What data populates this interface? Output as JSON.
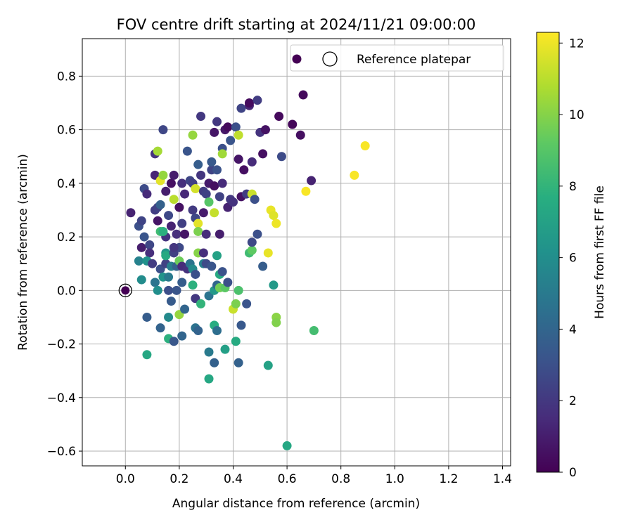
{
  "chart_data": {
    "type": "scatter",
    "title": "FOV centre drift starting at 2024/11/21 09:00:00",
    "xlabel": "Angular distance from reference (arcmin)",
    "ylabel": "Rotation from reference (arcmin)",
    "xlim": [
      -0.16,
      1.43
    ],
    "ylim": [
      -0.655,
      0.94
    ],
    "xticks": [
      "0.0",
      "0.2",
      "0.4",
      "0.6",
      "0.8",
      "1.0",
      "1.2",
      "1.4"
    ],
    "yticks": [
      "−0.6",
      "−0.4",
      "−0.2",
      "0.0",
      "0.2",
      "0.4",
      "0.6",
      "0.8"
    ],
    "grid": true,
    "legend": {
      "position": "top-right",
      "entries": [
        "Reference platepar"
      ]
    },
    "colorbar": {
      "label": "Hours from first FF file",
      "min": 0,
      "max": 12.3,
      "ticks": [
        "0",
        "2",
        "4",
        "6",
        "8",
        "10",
        "12"
      ],
      "colormap": "viridis"
    },
    "reference_point": {
      "x": 0.0,
      "y": 0.0,
      "color": "#440154"
    },
    "points": [
      [
        0.02,
        0.29,
        1.2
      ],
      [
        0.05,
        0.24,
        3.0
      ],
      [
        0.06,
        0.26,
        2.5
      ],
      [
        0.07,
        0.38,
        2.8
      ],
      [
        0.08,
        0.36,
        1.5
      ],
      [
        0.06,
        0.16,
        1.0
      ],
      [
        0.07,
        0.2,
        3.2
      ],
      [
        0.09,
        0.17,
        2.6
      ],
      [
        0.09,
        0.14,
        1.6
      ],
      [
        0.11,
        0.3,
        2.2
      ],
      [
        0.11,
        0.43,
        1.3
      ],
      [
        0.11,
        0.51,
        1.8
      ],
      [
        0.12,
        0.52,
        10.6
      ],
      [
        0.12,
        0.31,
        2.4
      ],
      [
        0.12,
        0.26,
        0.7
      ],
      [
        0.13,
        0.41,
        11.8
      ],
      [
        0.13,
        0.32,
        3.8
      ],
      [
        0.14,
        0.43,
        10.3
      ],
      [
        0.14,
        0.6,
        2.6
      ],
      [
        0.15,
        0.37,
        1.0
      ],
      [
        0.15,
        0.2,
        1.8
      ],
      [
        0.15,
        0.14,
        6.4
      ],
      [
        0.16,
        0.28,
        2.7
      ],
      [
        0.17,
        0.4,
        0.5
      ],
      [
        0.17,
        0.24,
        1.2
      ],
      [
        0.18,
        0.43,
        0.9
      ],
      [
        0.18,
        0.34,
        11.0
      ],
      [
        0.19,
        0.21,
        1.6
      ],
      [
        0.2,
        0.31,
        0.6
      ],
      [
        0.2,
        0.16,
        2.7
      ],
      [
        0.21,
        0.4,
        1.7
      ],
      [
        0.21,
        0.25,
        2.3
      ],
      [
        0.22,
        0.21,
        0.7
      ],
      [
        0.22,
        0.36,
        1.4
      ],
      [
        0.23,
        0.52,
        3.2
      ],
      [
        0.24,
        0.41,
        2.6
      ],
      [
        0.25,
        0.4,
        2.3
      ],
      [
        0.25,
        0.3,
        2.1
      ],
      [
        0.25,
        0.58,
        10.3
      ],
      [
        0.26,
        0.38,
        11.5
      ],
      [
        0.26,
        0.27,
        2.6
      ],
      [
        0.27,
        0.25,
        11.8
      ],
      [
        0.27,
        0.22,
        9.8
      ],
      [
        0.27,
        0.47,
        3.6
      ],
      [
        0.28,
        0.65,
        2.0
      ],
      [
        0.28,
        0.43,
        1.9
      ],
      [
        0.29,
        0.37,
        2.2
      ],
      [
        0.29,
        0.29,
        0.9
      ],
      [
        0.3,
        0.36,
        2.4
      ],
      [
        0.3,
        0.21,
        1.5
      ],
      [
        0.31,
        0.33,
        9.0
      ],
      [
        0.31,
        0.4,
        0.9
      ],
      [
        0.32,
        0.45,
        2.5
      ],
      [
        0.32,
        0.48,
        3.4
      ],
      [
        0.33,
        0.59,
        0.7
      ],
      [
        0.33,
        0.29,
        11.2
      ],
      [
        0.33,
        0.39,
        0.5
      ],
      [
        0.34,
        0.63,
        2.0
      ],
      [
        0.34,
        0.45,
        3.1
      ],
      [
        0.35,
        0.21,
        1.0
      ],
      [
        0.35,
        0.35,
        2.4
      ],
      [
        0.36,
        0.4,
        1.5
      ],
      [
        0.36,
        0.53,
        3.0
      ],
      [
        0.36,
        0.51,
        10.5
      ],
      [
        0.37,
        0.6,
        0.8
      ],
      [
        0.38,
        0.61,
        0.3
      ],
      [
        0.38,
        0.31,
        1.2
      ],
      [
        0.39,
        0.34,
        2.0
      ],
      [
        0.39,
        0.56,
        3.2
      ],
      [
        0.4,
        0.33,
        1.8
      ],
      [
        0.41,
        0.61,
        3.0
      ],
      [
        0.42,
        0.49,
        0.7
      ],
      [
        0.42,
        0.58,
        11.1
      ],
      [
        0.43,
        0.68,
        2.5
      ],
      [
        0.43,
        0.35,
        0.6
      ],
      [
        0.44,
        0.45,
        0.5
      ],
      [
        0.45,
        0.36,
        2.2
      ],
      [
        0.46,
        0.69,
        1.3
      ],
      [
        0.46,
        0.7,
        0.4
      ],
      [
        0.47,
        0.36,
        11.3
      ],
      [
        0.47,
        0.48,
        1.5
      ],
      [
        0.48,
        0.34,
        3.0
      ],
      [
        0.49,
        0.71,
        2.2
      ],
      [
        0.5,
        0.59,
        1.8
      ],
      [
        0.51,
        0.51,
        0.5
      ],
      [
        0.52,
        0.6,
        0.6
      ],
      [
        0.54,
        0.3,
        11.9
      ],
      [
        0.55,
        0.28,
        11.7
      ],
      [
        0.56,
        0.25,
        12.0
      ],
      [
        0.57,
        0.65,
        0.3
      ],
      [
        0.58,
        0.5,
        2.8
      ],
      [
        0.62,
        0.62,
        0.2
      ],
      [
        0.65,
        0.58,
        0.5
      ],
      [
        0.66,
        0.73,
        0.3
      ],
      [
        0.67,
        0.37,
        12.2
      ],
      [
        0.69,
        0.41,
        1.2
      ],
      [
        0.85,
        0.43,
        12.2
      ],
      [
        0.89,
        0.54,
        12.2
      ],
      [
        0.05,
        0.11,
        5.4
      ],
      [
        0.06,
        0.04,
        5.9
      ],
      [
        0.08,
        0.11,
        6.2
      ],
      [
        0.1,
        0.1,
        2.2
      ],
      [
        0.11,
        0.03,
        4.7
      ],
      [
        0.12,
        0.0,
        6.0
      ],
      [
        0.13,
        0.08,
        3.0
      ],
      [
        0.13,
        0.22,
        8.4
      ],
      [
        0.14,
        0.22,
        7.8
      ],
      [
        0.14,
        0.05,
        6.3
      ],
      [
        0.15,
        0.1,
        2.4
      ],
      [
        0.15,
        0.13,
        7.4
      ],
      [
        0.16,
        0.05,
        5.0
      ],
      [
        0.16,
        0.0,
        2.9
      ],
      [
        0.17,
        -0.04,
        3.5
      ],
      [
        0.17,
        0.09,
        5.2
      ],
      [
        0.18,
        0.14,
        2.3
      ],
      [
        0.18,
        0.16,
        1.9
      ],
      [
        0.19,
        0.0,
        3.2
      ],
      [
        0.19,
        0.09,
        3.8
      ],
      [
        0.2,
        0.11,
        9.5
      ],
      [
        0.21,
        0.09,
        1.5
      ],
      [
        0.21,
        0.03,
        3.6
      ],
      [
        0.23,
        0.08,
        1.7
      ],
      [
        0.24,
        0.1,
        4.7
      ],
      [
        0.25,
        0.08,
        5.8
      ],
      [
        0.25,
        0.02,
        7.8
      ],
      [
        0.26,
        -0.03,
        2.0
      ],
      [
        0.26,
        0.06,
        3.0
      ],
      [
        0.27,
        0.14,
        10.0
      ],
      [
        0.28,
        -0.05,
        8.0
      ],
      [
        0.29,
        0.1,
        5.3
      ],
      [
        0.29,
        0.14,
        1.6
      ],
      [
        0.3,
        0.1,
        2.8
      ],
      [
        0.31,
        -0.02,
        4.7
      ],
      [
        0.32,
        0.09,
        3.2
      ],
      [
        0.33,
        0.0,
        6.6
      ],
      [
        0.34,
        0.13,
        7.0
      ],
      [
        0.34,
        0.02,
        4.1
      ],
      [
        0.35,
        0.01,
        9.6
      ],
      [
        0.35,
        0.06,
        7.4
      ],
      [
        0.36,
        0.07,
        3.1
      ],
      [
        0.37,
        0.01,
        9.1
      ],
      [
        0.38,
        0.03,
        3.0
      ],
      [
        0.4,
        -0.07,
        11.3
      ],
      [
        0.41,
        -0.05,
        9.8
      ],
      [
        0.42,
        0.0,
        8.7
      ],
      [
        0.45,
        -0.05,
        3.2
      ],
      [
        0.46,
        0.14,
        8.4
      ],
      [
        0.47,
        0.15,
        9.2
      ],
      [
        0.47,
        0.18,
        2.7
      ],
      [
        0.49,
        0.21,
        3.0
      ],
      [
        0.51,
        0.09,
        3.6
      ],
      [
        0.53,
        0.14,
        11.9
      ],
      [
        0.55,
        0.02,
        6.6
      ],
      [
        0.56,
        -0.1,
        10.1
      ],
      [
        0.56,
        -0.12,
        9.9
      ],
      [
        0.08,
        -0.1,
        3.6
      ],
      [
        0.13,
        -0.14,
        3.9
      ],
      [
        0.16,
        -0.1,
        5.8
      ],
      [
        0.16,
        -0.18,
        7.8
      ],
      [
        0.18,
        -0.19,
        3.3
      ],
      [
        0.2,
        -0.09,
        10.3
      ],
      [
        0.21,
        -0.17,
        4.0
      ],
      [
        0.22,
        -0.07,
        4.0
      ],
      [
        0.26,
        -0.14,
        4.6
      ],
      [
        0.27,
        -0.15,
        3.9
      ],
      [
        0.31,
        -0.23,
        5.0
      ],
      [
        0.31,
        -0.33,
        7.3
      ],
      [
        0.33,
        -0.27,
        3.8
      ],
      [
        0.33,
        -0.13,
        7.6
      ],
      [
        0.34,
        -0.15,
        4.4
      ],
      [
        0.37,
        -0.22,
        6.9
      ],
      [
        0.41,
        -0.19,
        7.5
      ],
      [
        0.42,
        -0.27,
        3.8
      ],
      [
        0.43,
        -0.13,
        3.4
      ],
      [
        0.53,
        -0.28,
        7.0
      ],
      [
        0.7,
        -0.15,
        8.5
      ],
      [
        0.08,
        -0.24,
        7.3
      ],
      [
        0.6,
        -0.58,
        7.3
      ]
    ]
  }
}
